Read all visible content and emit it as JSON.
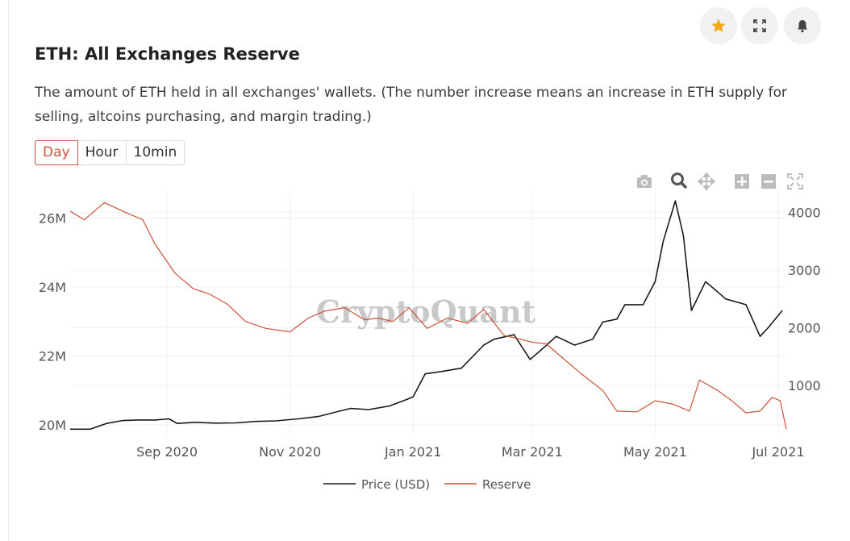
{
  "header": {
    "title": "ETH: All Exchanges Reserve",
    "description": "The amount of ETH held in all exchanges' wallets. (The number increase means an increase in ETH supply for selling, altcoins purchasing, and margin trading.)"
  },
  "actions": {
    "star_icon": "star-icon",
    "expand_icon": "expand-icon",
    "bell_icon": "bell-icon"
  },
  "tabs": [
    {
      "label": "Day",
      "active": true
    },
    {
      "label": "Hour",
      "active": false
    },
    {
      "label": "10min",
      "active": false
    }
  ],
  "modebar": [
    "camera-icon",
    "zoom-icon",
    "pan-icon",
    "zoom-in-icon",
    "zoom-out-icon",
    "autoscale-icon"
  ],
  "watermark": "CryptoQuant",
  "colors": {
    "price": "#1a1a1a",
    "reserve": "#c9533c",
    "accent": "#c9533c",
    "star": "#f2a618"
  },
  "chart_data": {
    "type": "line",
    "x_ticks": [
      "Sep 2020",
      "Nov 2020",
      "Jan 2021",
      "Mar 2021",
      "May 2021",
      "Jul 2021"
    ],
    "y_left_ticks": [
      "20M",
      "22M",
      "24M",
      "26M"
    ],
    "y_right_ticks": [
      "1000",
      "2000",
      "3000",
      "4000"
    ],
    "y_left_range": [
      20000000,
      26700000
    ],
    "y_right_range": [
      300,
      4350
    ],
    "x_range": [
      "2020-07-15",
      "2021-07-05"
    ],
    "grid": true,
    "legend_position": "bottom",
    "series": [
      {
        "name": "Price (USD)",
        "axis": "right",
        "x": [
          "2020-07-15",
          "2020-07-25",
          "2020-08-02",
          "2020-08-10",
          "2020-08-18",
          "2020-08-26",
          "2020-09-02",
          "2020-09-06",
          "2020-09-15",
          "2020-09-25",
          "2020-10-05",
          "2020-10-15",
          "2020-10-25",
          "2020-11-05",
          "2020-11-15",
          "2020-11-24",
          "2020-12-01",
          "2020-12-10",
          "2020-12-20",
          "2020-12-27",
          "2021-01-01",
          "2021-01-07",
          "2021-01-15",
          "2021-01-25",
          "2021-02-05",
          "2021-02-10",
          "2021-02-20",
          "2021-02-28",
          "2021-03-05",
          "2021-03-13",
          "2021-03-22",
          "2021-03-31",
          "2021-04-05",
          "2021-04-12",
          "2021-04-16",
          "2021-04-25",
          "2021-05-01",
          "2021-05-05",
          "2021-05-11",
          "2021-05-15",
          "2021-05-19",
          "2021-05-26",
          "2021-06-05",
          "2021-06-15",
          "2021-06-22",
          "2021-06-26",
          "2021-07-03"
        ],
        "values": [
          240,
          240,
          340,
          390,
          400,
          400,
          420,
          340,
          360,
          345,
          350,
          375,
          385,
          420,
          460,
          540,
          600,
          580,
          640,
          730,
          800,
          1200,
          1240,
          1300,
          1700,
          1800,
          1880,
          1450,
          1600,
          1850,
          1700,
          1800,
          2100,
          2150,
          2400,
          2400,
          2800,
          3500,
          4200,
          3600,
          2300,
          2800,
          2500,
          2400,
          1850,
          2000,
          2300
        ]
      },
      {
        "name": "Reserve",
        "axis": "left",
        "x": [
          "2020-07-15",
          "2020-07-22",
          "2020-08-01",
          "2020-08-12",
          "2020-08-20",
          "2020-08-26",
          "2020-09-05",
          "2020-09-14",
          "2020-09-22",
          "2020-10-01",
          "2020-10-10",
          "2020-10-20",
          "2020-11-01",
          "2020-11-10",
          "2020-11-18",
          "2020-11-28",
          "2020-12-08",
          "2020-12-15",
          "2020-12-22",
          "2020-12-30",
          "2021-01-08",
          "2021-01-18",
          "2021-01-28",
          "2021-02-05",
          "2021-02-15",
          "2021-02-22",
          "2021-03-01",
          "2021-03-08",
          "2021-03-15",
          "2021-03-25",
          "2021-04-05",
          "2021-04-12",
          "2021-04-22",
          "2021-05-01",
          "2021-05-10",
          "2021-05-18",
          "2021-05-23",
          "2021-06-01",
          "2021-06-08",
          "2021-06-15",
          "2021-06-22",
          "2021-06-28",
          "2021-07-02",
          "2021-07-05"
        ],
        "values": [
          26200000,
          25950000,
          26450000,
          26150000,
          25950000,
          25250000,
          24400000,
          23950000,
          23800000,
          23500000,
          23000000,
          22800000,
          22700000,
          23100000,
          23300000,
          23400000,
          23050000,
          23100000,
          23000000,
          23400000,
          22800000,
          23100000,
          22950000,
          23350000,
          22600000,
          22500000,
          22400000,
          22350000,
          22000000,
          21500000,
          21000000,
          20400000,
          20380000,
          20700000,
          20600000,
          20400000,
          21300000,
          21000000,
          20700000,
          20350000,
          20400000,
          20800000,
          20700000,
          19880000
        ]
      }
    ]
  }
}
